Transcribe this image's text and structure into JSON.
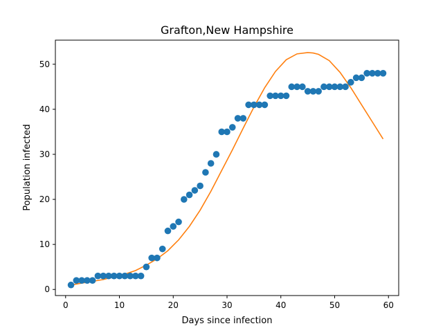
{
  "chart_data": {
    "type": "scatter",
    "title": "Grafton,New Hampshire",
    "xlabel": "Days since infection",
    "ylabel": "Population infected",
    "xlim": [
      -1.9,
      61.9
    ],
    "ylim": [
      -1.35,
      55.35
    ],
    "xticks": [
      0,
      10,
      20,
      30,
      40,
      50,
      60
    ],
    "yticks": [
      0,
      10,
      20,
      30,
      40,
      50
    ],
    "grid": false,
    "legend": "none",
    "series": [
      {
        "kind": "scatter",
        "color": "#1f77b4",
        "x": [
          1,
          2,
          3,
          4,
          5,
          6,
          7,
          8,
          9,
          10,
          11,
          12,
          13,
          14,
          15,
          16,
          17,
          18,
          19,
          20,
          21,
          22,
          23,
          24,
          25,
          26,
          27,
          28,
          29,
          30,
          31,
          32,
          33,
          34,
          35,
          36,
          37,
          38,
          39,
          40,
          41,
          42,
          43,
          44,
          45,
          46,
          47,
          48,
          49,
          50,
          51,
          52,
          53,
          54,
          55,
          56,
          57,
          58,
          59
        ],
        "y": [
          1,
          2,
          2,
          2,
          2,
          3,
          3,
          3,
          3,
          3,
          3,
          3,
          3,
          3,
          5,
          7,
          7,
          9,
          13,
          14,
          15,
          20,
          21,
          22,
          23,
          26,
          28,
          30,
          35,
          35,
          36,
          38,
          38,
          41,
          41,
          41,
          41,
          43,
          43,
          43,
          43,
          45,
          45,
          45,
          44,
          44,
          44,
          45,
          45,
          45,
          45,
          45,
          46,
          47,
          47,
          48,
          48,
          48,
          48
        ]
      },
      {
        "kind": "line",
        "color": "#ff7f0e",
        "x": [
          1,
          3,
          5,
          7,
          9,
          11,
          13,
          15,
          17,
          19,
          21,
          23,
          25,
          27,
          29,
          31,
          33,
          35,
          37,
          39,
          41,
          43,
          45,
          46,
          47,
          49,
          51,
          53,
          55,
          57,
          59
        ],
        "y": [
          1.0,
          1.4,
          1.8,
          2.2,
          2.8,
          3.4,
          4.2,
          5.4,
          6.8,
          8.6,
          11.0,
          14.0,
          17.6,
          21.8,
          26.4,
          31.0,
          35.8,
          40.5,
          44.8,
          48.4,
          51.0,
          52.3,
          52.6,
          52.5,
          52.2,
          50.8,
          48.2,
          44.8,
          41.0,
          37.2,
          33.4
        ]
      }
    ]
  }
}
